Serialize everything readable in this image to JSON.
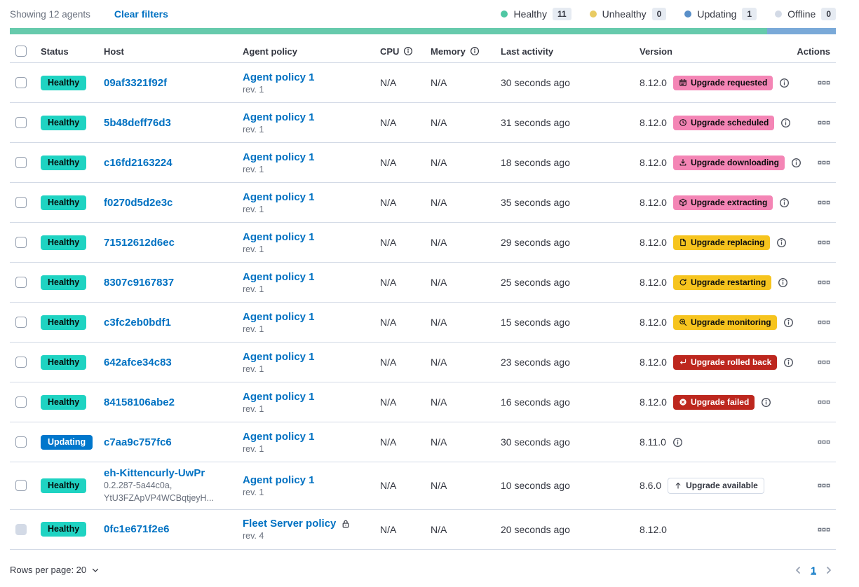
{
  "toolbar": {
    "showing": "Showing 12 agents",
    "clear_filters": "Clear filters",
    "legend": [
      {
        "label": "Healthy",
        "count": "11",
        "color": "#4FC7A3"
      },
      {
        "label": "Unhealthy",
        "count": "0",
        "color": "#E9CB62"
      },
      {
        "label": "Updating",
        "count": "1",
        "color": "#598FC8"
      },
      {
        "label": "Offline",
        "count": "0",
        "color": "#D3DAE6"
      }
    ]
  },
  "health_bar": {
    "segments": [
      {
        "status": "healthy",
        "color": "#66CAAC",
        "fraction": 0.9167
      },
      {
        "status": "updating",
        "color": "#7AA9D8",
        "fraction": 0.0833
      }
    ]
  },
  "table": {
    "headers": {
      "status": "Status",
      "host": "Host",
      "policy": "Agent policy",
      "cpu": "CPU",
      "memory": "Memory",
      "activity": "Last activity",
      "version": "Version",
      "actions": "Actions"
    },
    "rows": [
      {
        "status": "Healthy",
        "status_variant": "healthy",
        "host": "09af3321f92f",
        "host_sub": [],
        "policy": "Agent policy 1",
        "policy_locked": false,
        "rev": "rev. 1",
        "cpu": "N/A",
        "memory": "N/A",
        "activity": "30 seconds ago",
        "version": "8.12.0",
        "badge": {
          "label": "Upgrade requested",
          "icon": "calendar-icon",
          "variant": "pink"
        },
        "version_info": true,
        "checkbox_disabled": false
      },
      {
        "status": "Healthy",
        "status_variant": "healthy",
        "host": "5b48deff76d3",
        "host_sub": [],
        "policy": "Agent policy 1",
        "policy_locked": false,
        "rev": "rev. 1",
        "cpu": "N/A",
        "memory": "N/A",
        "activity": "31 seconds ago",
        "version": "8.12.0",
        "badge": {
          "label": "Upgrade scheduled",
          "icon": "clock-icon",
          "variant": "pink"
        },
        "version_info": true,
        "checkbox_disabled": false
      },
      {
        "status": "Healthy",
        "status_variant": "healthy",
        "host": "c16fd2163224",
        "host_sub": [],
        "policy": "Agent policy 1",
        "policy_locked": false,
        "rev": "rev. 1",
        "cpu": "N/A",
        "memory": "N/A",
        "activity": "18 seconds ago",
        "version": "8.12.0",
        "badge": {
          "label": "Upgrade downloading",
          "icon": "download-icon",
          "variant": "pink"
        },
        "version_info": true,
        "checkbox_disabled": false
      },
      {
        "status": "Healthy",
        "status_variant": "healthy",
        "host": "f0270d5d2e3c",
        "host_sub": [],
        "policy": "Agent policy 1",
        "policy_locked": false,
        "rev": "rev. 1",
        "cpu": "N/A",
        "memory": "N/A",
        "activity": "35 seconds ago",
        "version": "8.12.0",
        "badge": {
          "label": "Upgrade extracting",
          "icon": "package-icon",
          "variant": "pink"
        },
        "version_info": true,
        "checkbox_disabled": false
      },
      {
        "status": "Healthy",
        "status_variant": "healthy",
        "host": "71512612d6ec",
        "host_sub": [],
        "policy": "Agent policy 1",
        "policy_locked": false,
        "rev": "rev. 1",
        "cpu": "N/A",
        "memory": "N/A",
        "activity": "29 seconds ago",
        "version": "8.12.0",
        "badge": {
          "label": "Upgrade replacing",
          "icon": "document-icon",
          "variant": "yellow"
        },
        "version_info": true,
        "checkbox_disabled": false
      },
      {
        "status": "Healthy",
        "status_variant": "healthy",
        "host": "8307c9167837",
        "host_sub": [],
        "policy": "Agent policy 1",
        "policy_locked": false,
        "rev": "rev. 1",
        "cpu": "N/A",
        "memory": "N/A",
        "activity": "25 seconds ago",
        "version": "8.12.0",
        "badge": {
          "label": "Upgrade restarting",
          "icon": "refresh-icon",
          "variant": "yellow"
        },
        "version_info": true,
        "checkbox_disabled": false
      },
      {
        "status": "Healthy",
        "status_variant": "healthy",
        "host": "c3fc2eb0bdf1",
        "host_sub": [],
        "policy": "Agent policy 1",
        "policy_locked": false,
        "rev": "rev. 1",
        "cpu": "N/A",
        "memory": "N/A",
        "activity": "15 seconds ago",
        "version": "8.12.0",
        "badge": {
          "label": "Upgrade monitoring",
          "icon": "inspect-icon",
          "variant": "yellow"
        },
        "version_info": true,
        "checkbox_disabled": false
      },
      {
        "status": "Healthy",
        "status_variant": "healthy",
        "host": "642afce34c83",
        "host_sub": [],
        "policy": "Agent policy 1",
        "policy_locked": false,
        "rev": "rev. 1",
        "cpu": "N/A",
        "memory": "N/A",
        "activity": "23 seconds ago",
        "version": "8.12.0",
        "badge": {
          "label": "Upgrade rolled back",
          "icon": "return-icon",
          "variant": "red"
        },
        "version_info": true,
        "checkbox_disabled": false
      },
      {
        "status": "Healthy",
        "status_variant": "healthy",
        "host": "84158106abe2",
        "host_sub": [],
        "policy": "Agent policy 1",
        "policy_locked": false,
        "rev": "rev. 1",
        "cpu": "N/A",
        "memory": "N/A",
        "activity": "16 seconds ago",
        "version": "8.12.0",
        "badge": {
          "label": "Upgrade failed",
          "icon": "cross-circle-icon",
          "variant": "red"
        },
        "version_info": true,
        "checkbox_disabled": false
      },
      {
        "status": "Updating",
        "status_variant": "updating",
        "host": "c7aa9c757fc6",
        "host_sub": [],
        "policy": "Agent policy 1",
        "policy_locked": false,
        "rev": "rev. 1",
        "cpu": "N/A",
        "memory": "N/A",
        "activity": "30 seconds ago",
        "version": "8.11.0",
        "badge": null,
        "version_info": true,
        "checkbox_disabled": false
      },
      {
        "status": "Healthy",
        "status_variant": "healthy",
        "host": "eh-Kittencurly-UwPr",
        "host_sub": [
          "0.2.287-5a44c0a,",
          "YtU3FZApVP4WCBqtjeyH..."
        ],
        "policy": "Agent policy 1",
        "policy_locked": false,
        "rev": "rev. 1",
        "cpu": "N/A",
        "memory": "N/A",
        "activity": "10 seconds ago",
        "version": "8.6.0",
        "badge": {
          "label": "Upgrade available",
          "icon": "arrow-up-icon",
          "variant": "hollow"
        },
        "version_info": false,
        "checkbox_disabled": false
      },
      {
        "status": "Healthy",
        "status_variant": "healthy",
        "host": "0fc1e671f2e6",
        "host_sub": [],
        "policy": "Fleet Server policy",
        "policy_locked": true,
        "rev": "rev. 4",
        "cpu": "N/A",
        "memory": "N/A",
        "activity": "20 seconds ago",
        "version": "8.12.0",
        "badge": null,
        "version_info": false,
        "checkbox_disabled": true
      }
    ]
  },
  "footer": {
    "rows_per_page": "Rows per page: 20",
    "page": "1"
  },
  "colors": {
    "link": "#0071C2",
    "healthy_badge": "#1FD3C2",
    "updating_badge": "#0077CC",
    "pink_badge": "#F485B5",
    "yellow_badge": "#F6C41E",
    "red_badge": "#BD271E",
    "border": "#D3DAE6"
  }
}
